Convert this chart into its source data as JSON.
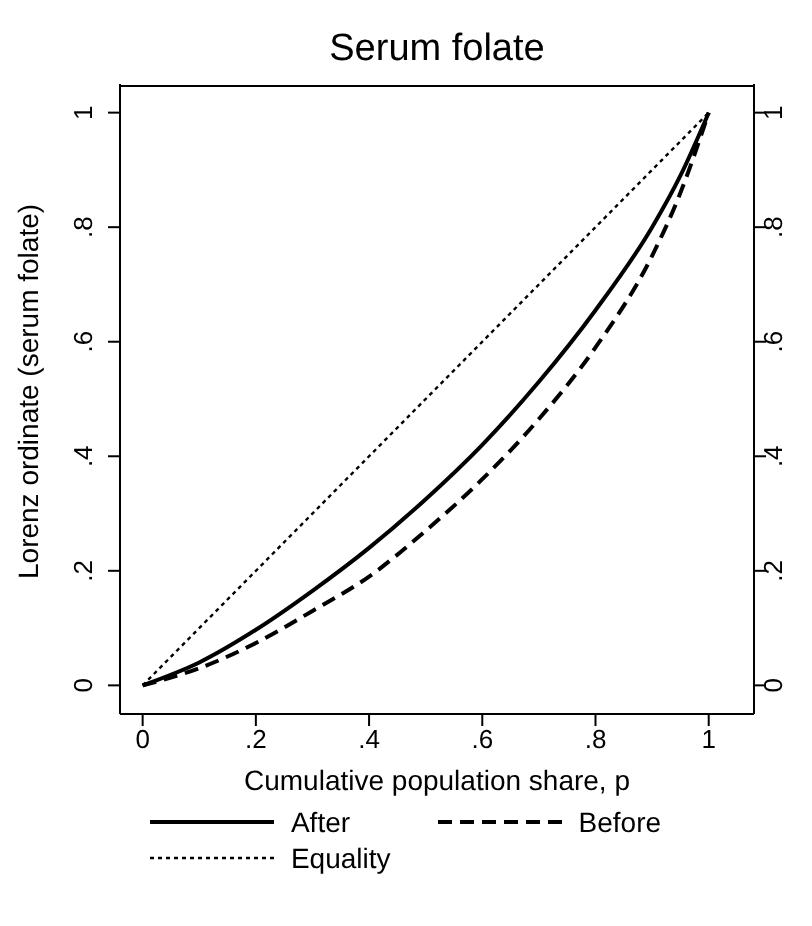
{
  "chart_data": {
    "type": "line",
    "title": "Serum folate",
    "xlabel": "Cumulative population share, p",
    "ylabel": "Lorenz ordinate (serum folate)",
    "series": [
      {
        "name": "After",
        "color": "#000000",
        "line_style": "solid",
        "x": [
          0,
          0.1,
          0.2,
          0.3,
          0.4,
          0.5,
          0.6,
          0.7,
          0.8,
          0.9,
          0.95,
          1
        ],
        "values": [
          0,
          0.04,
          0.097,
          0.165,
          0.24,
          0.325,
          0.42,
          0.53,
          0.655,
          0.8,
          0.89,
          1
        ]
      },
      {
        "name": "Before",
        "color": "#000000",
        "line_style": "dashed",
        "x": [
          0,
          0.1,
          0.2,
          0.3,
          0.4,
          0.5,
          0.6,
          0.7,
          0.8,
          0.9,
          0.95,
          1
        ],
        "values": [
          0,
          0.03,
          0.074,
          0.13,
          0.19,
          0.27,
          0.36,
          0.465,
          0.59,
          0.75,
          0.86,
          1
        ]
      },
      {
        "name": "Equality",
        "color": "#000000",
        "line_style": "dotted",
        "x": [
          0,
          1
        ],
        "values": [
          0,
          1
        ]
      }
    ],
    "xlim": [
      -0.04,
      1.08
    ],
    "xticks": [
      0,
      {
        "value": 0.2,
        "label": ".2"
      },
      {
        "value": 0.4,
        "label": ".4"
      },
      {
        "value": 0.6,
        "label": ".6"
      },
      {
        "value": 0.8,
        "label": ".8"
      },
      1
    ],
    "ylim": [
      -0.05,
      1.05
    ],
    "yticks": [
      0,
      {
        "value": 0.2,
        "label": ".2"
      },
      {
        "value": 0.4,
        "label": ".4"
      },
      {
        "value": 0.6,
        "label": ".6"
      },
      {
        "value": 0.8,
        "label": ".8"
      },
      1
    ],
    "y2lim": [
      -0.05,
      1.05
    ],
    "y2ticks": [
      0,
      {
        "value": 0.2,
        "label": ".2"
      },
      {
        "value": 0.4,
        "label": ".4"
      },
      {
        "value": 0.6,
        "label": ".6"
      },
      {
        "value": 0.8,
        "label": ".8"
      },
      1
    ],
    "legend": "bottom",
    "marker": "none"
  }
}
